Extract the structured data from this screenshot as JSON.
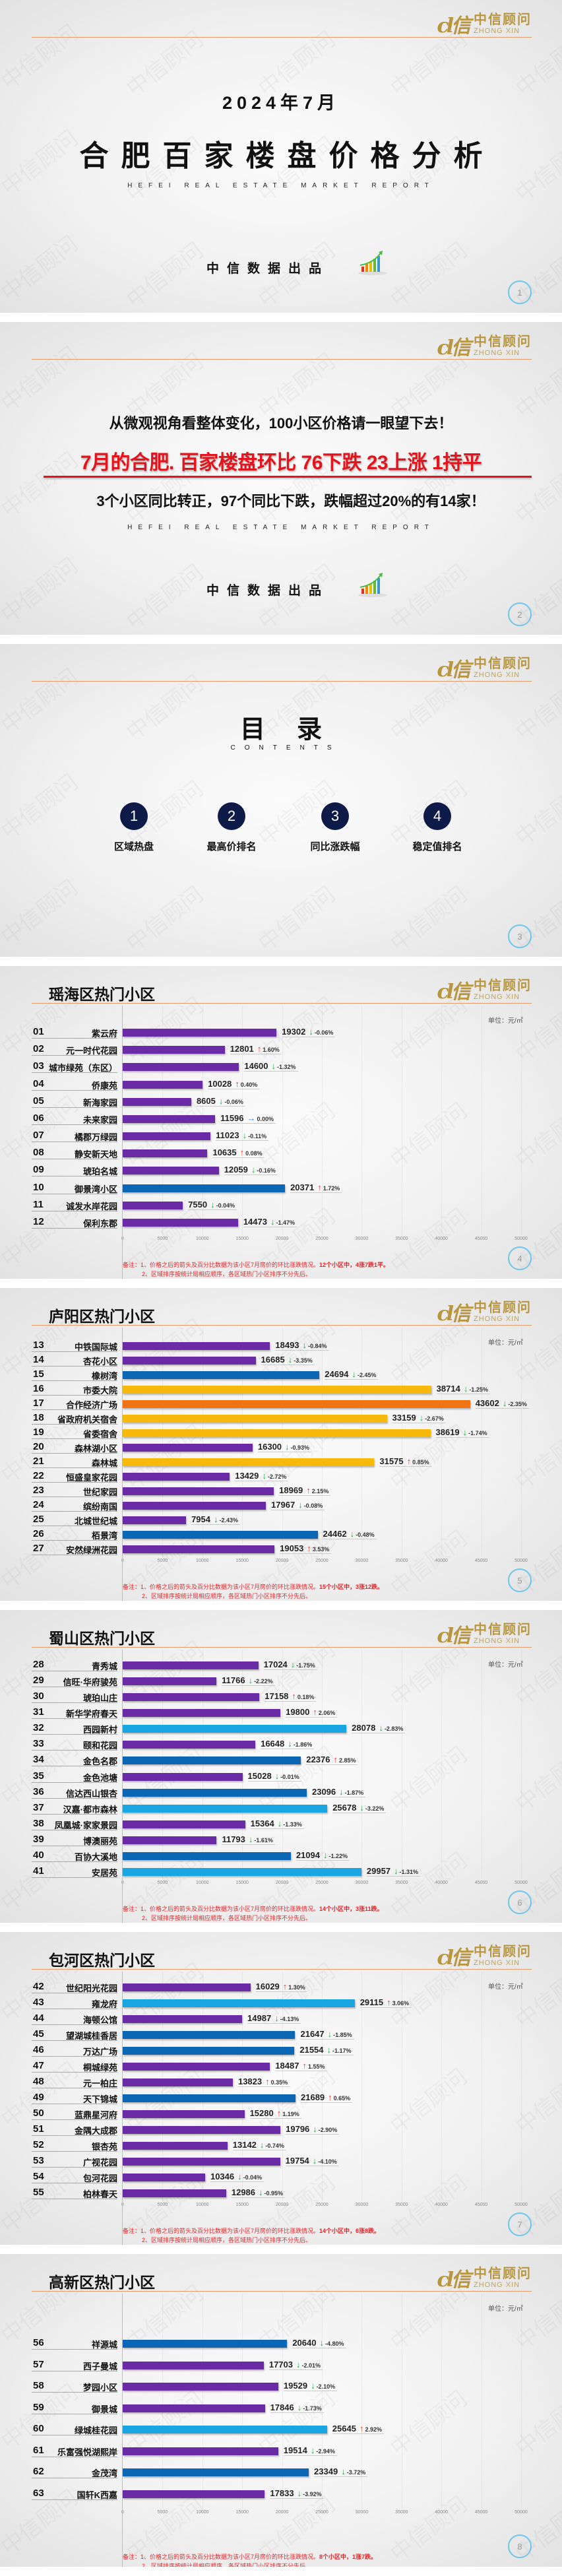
{
  "brand": {
    "name_cn": "中信顾问",
    "name_en": "ZHONG XIN",
    "logo_mark": "cl信"
  },
  "watermark": "中信顾问",
  "cover": {
    "date": "2024年7月",
    "title": "合肥百家楼盘价格分析",
    "subtitle_en": "HEFEI REAL ESTATE MARKET REPORT",
    "producer": "中信数据出品",
    "page": "1"
  },
  "summary": {
    "line1": "从微观视角看整体变化，100小区价格请一眼望下去！",
    "headline": "7月的合肥. 百家楼盘环比 76下跌 23上涨 1持平",
    "line3": "3个小区同比转正，97个同比下跌，跌幅超过20%的有14家！",
    "subtitle_en": "HEFEI REAL ESTATE MARKET REPORT",
    "producer": "中信数据出品",
    "page": "2"
  },
  "toc": {
    "title": "目录",
    "subtitle_en": "CONTENTS",
    "items": [
      {
        "num": "1",
        "label": "区域热盘"
      },
      {
        "num": "2",
        "label": "最高价排名"
      },
      {
        "num": "3",
        "label": "同比涨跌幅"
      },
      {
        "num": "4",
        "label": "稳定值排名"
      }
    ],
    "page": "3"
  },
  "bar_colors": [
    {
      "below": 20000,
      "color": "#6b2aa6"
    },
    {
      "below": 25000,
      "color": "#0b67b5"
    },
    {
      "below": 30000,
      "color": "#19a6e2"
    },
    {
      "below": 40000,
      "color": "#f6b90c"
    },
    {
      "below": 99999,
      "color": "#f27314"
    }
  ],
  "change_colors": {
    "up": "#f03a1c",
    "down": "#1fae3c",
    "flat": "#1e88e5"
  },
  "chart_data": [
    {
      "type": "bar",
      "title": "瑶海区热门小区",
      "unit": "单位：元/㎡",
      "xlim": [
        0,
        50000
      ],
      "xticks": [
        "0",
        "5000",
        "10000",
        "15000",
        "20000",
        "25000",
        "30000",
        "35000",
        "40000",
        "45000",
        "50000"
      ],
      "rows": [
        {
          "rank": "01",
          "name": "紫云府",
          "value": 19302,
          "change": "-0.06%"
        },
        {
          "rank": "02",
          "name": "元一时代花园",
          "value": 12801,
          "change": "1.60%"
        },
        {
          "rank": "03",
          "name": "城市绿苑（东区）",
          "value": 14600,
          "change": "-1.32%"
        },
        {
          "rank": "04",
          "name": "侨康苑",
          "value": 10028,
          "change": "0.40%"
        },
        {
          "rank": "05",
          "name": "新海家园",
          "value": 8605,
          "change": "-0.06%"
        },
        {
          "rank": "06",
          "name": "未来家园",
          "value": 11596,
          "change": "0.00%"
        },
        {
          "rank": "07",
          "name": "橘郡万绿园",
          "value": 11023,
          "change": "-0.11%"
        },
        {
          "rank": "08",
          "name": "静安新天地",
          "value": 10635,
          "change": "0.08%"
        },
        {
          "rank": "09",
          "name": "琥珀名城",
          "value": 12059,
          "change": "-0.16%"
        },
        {
          "rank": "10",
          "name": "御景湾小区",
          "value": 20371,
          "change": "1.72%"
        },
        {
          "rank": "11",
          "name": "诚发水岸花园",
          "value": 7550,
          "change": "-0.04%"
        },
        {
          "rank": "12",
          "name": "保利东郡",
          "value": 14473,
          "change": "-1.47%"
        }
      ],
      "note": {
        "line1": "备注：1、价格之后的箭头及百分比数据为该小区7月房价的环比涨跌情况。",
        "summary": "12个小区中，4涨7跌1平。",
        "line2": "2、区域排序按统计局相应顺序，各区域热门小区排序不分先后。"
      },
      "page": "4"
    },
    {
      "type": "bar",
      "title": "庐阳区热门小区",
      "unit": "单位：元/㎡",
      "xlim": [
        0,
        50000
      ],
      "xticks": [
        "0",
        "5000",
        "10000",
        "15000",
        "20000",
        "25000",
        "30000",
        "35000",
        "40000",
        "45000",
        "50000"
      ],
      "rows": [
        {
          "rank": "13",
          "name": "中铁国际城",
          "value": 18493,
          "change": "-0.84%"
        },
        {
          "rank": "14",
          "name": "杏花小区",
          "value": 16685,
          "change": "-3.35%"
        },
        {
          "rank": "15",
          "name": "橡树湾",
          "value": 24694,
          "change": "-2.45%"
        },
        {
          "rank": "16",
          "name": "市委大院",
          "value": 38714,
          "change": "-1.25%"
        },
        {
          "rank": "17",
          "name": "合作经济广场",
          "value": 43602,
          "change": "-2.35%"
        },
        {
          "rank": "18",
          "name": "省政府机关宿舍",
          "value": 33159,
          "change": "-2.67%"
        },
        {
          "rank": "19",
          "name": "省委宿舍",
          "value": 38619,
          "change": "-1.74%"
        },
        {
          "rank": "20",
          "name": "森林湖小区",
          "value": 16300,
          "change": "-0.93%"
        },
        {
          "rank": "21",
          "name": "森林城",
          "value": 31575,
          "change": "0.85%"
        },
        {
          "rank": "22",
          "name": "恒盛皇家花园",
          "value": 13429,
          "change": "-2.72%"
        },
        {
          "rank": "23",
          "name": "世纪家园",
          "value": 18969,
          "change": "2.15%"
        },
        {
          "rank": "24",
          "name": "缤纷南国",
          "value": 17967,
          "change": "-0.08%"
        },
        {
          "rank": "25",
          "name": "北城世纪城",
          "value": 7954,
          "change": "-2.43%"
        },
        {
          "rank": "26",
          "name": "栢景湾",
          "value": 24462,
          "change": "-0.48%"
        },
        {
          "rank": "27",
          "name": "安然绿洲花园",
          "value": 19053,
          "change": "3.53%"
        }
      ],
      "note": {
        "line1": "备注：1、价格之后的箭头及百分比数据为该小区7月房价的环比涨跌情况。",
        "summary": "15个小区中，3涨12跌。",
        "line2": "2、区域排序按统计局相应顺序，各区域热门小区排序不分先后。"
      },
      "page": "5"
    },
    {
      "type": "bar",
      "title": "蜀山区热门小区",
      "unit": "单位：元/㎡",
      "xlim": [
        0,
        50000
      ],
      "xticks": [
        "0",
        "5000",
        "10000",
        "15000",
        "20000",
        "25000",
        "30000",
        "35000",
        "40000",
        "45000",
        "50000"
      ],
      "rows": [
        {
          "rank": "28",
          "name": "青秀城",
          "value": 17024,
          "change": "-1.75%"
        },
        {
          "rank": "29",
          "name": "信旺·华府骏苑",
          "value": 11766,
          "change": "-2.22%"
        },
        {
          "rank": "30",
          "name": "琥珀山庄",
          "value": 17158,
          "change": "0.18%"
        },
        {
          "rank": "31",
          "name": "新华学府春天",
          "value": 19800,
          "change": "2.06%"
        },
        {
          "rank": "32",
          "name": "西园新村",
          "value": 28078,
          "change": "-2.83%"
        },
        {
          "rank": "33",
          "name": "颐和花园",
          "value": 16648,
          "change": "-1.86%"
        },
        {
          "rank": "34",
          "name": "金色名郡",
          "value": 22376,
          "change": "2.85%"
        },
        {
          "rank": "35",
          "name": "金色池塘",
          "value": 15028,
          "change": "-0.01%"
        },
        {
          "rank": "36",
          "name": "信达西山银杏",
          "value": 23096,
          "change": "-1.87%"
        },
        {
          "rank": "37",
          "name": "汉嘉·都市森林",
          "value": 25678,
          "change": "-3.22%"
        },
        {
          "rank": "38",
          "name": "凤凰城·家家景园",
          "value": 15364,
          "change": "-1.33%"
        },
        {
          "rank": "39",
          "name": "博澳丽苑",
          "value": 11793,
          "change": "-1.61%"
        },
        {
          "rank": "40",
          "name": "百协大溪地",
          "value": 21094,
          "change": "-1.22%"
        },
        {
          "rank": "41",
          "name": "安居苑",
          "value": 29957,
          "change": "-1.31%"
        }
      ],
      "note": {
        "line1": "备注：1、价格之后的箭头及百分比数据为该小区7月房价的环比涨跌情况。",
        "summary": "14个小区中，3涨11跌。",
        "line2": "2、区域排序按统计局相应顺序，各区域热门小区排序不分先后。"
      },
      "page": "6"
    },
    {
      "type": "bar",
      "title": "包河区热门小区",
      "unit": "单位：元/㎡",
      "xlim": [
        0,
        50000
      ],
      "xticks": [
        "0",
        "5000",
        "10000",
        "15000",
        "20000",
        "25000",
        "30000",
        "35000",
        "40000",
        "45000",
        "50000"
      ],
      "rows": [
        {
          "rank": "42",
          "name": "世纪阳光花园",
          "value": 16029,
          "change": "1.30%"
        },
        {
          "rank": "43",
          "name": "雍龙府",
          "value": 29115,
          "change": "3.06%"
        },
        {
          "rank": "44",
          "name": "海顿公馆",
          "value": 14987,
          "change": "-4.13%"
        },
        {
          "rank": "45",
          "name": "望湖城桂香居",
          "value": 21647,
          "change": "-1.85%"
        },
        {
          "rank": "46",
          "name": "万达广场",
          "value": 21554,
          "change": "-1.17%"
        },
        {
          "rank": "47",
          "name": "桐城绿苑",
          "value": 18487,
          "change": "1.55%"
        },
        {
          "rank": "48",
          "name": "元一柏庄",
          "value": 13823,
          "change": "0.35%"
        },
        {
          "rank": "49",
          "name": "天下锦城",
          "value": 21689,
          "change": "0.65%"
        },
        {
          "rank": "50",
          "name": "蓝鼎星河府",
          "value": 15280,
          "change": "1.19%"
        },
        {
          "rank": "51",
          "name": "金隅大成郡",
          "value": 19796,
          "change": "-2.90%"
        },
        {
          "rank": "52",
          "name": "银杏苑",
          "value": 13142,
          "change": "-0.74%"
        },
        {
          "rank": "53",
          "name": "广视花园",
          "value": 19754,
          "change": "-4.10%"
        },
        {
          "rank": "54",
          "name": "包河花园",
          "value": 10346,
          "change": "-0.04%"
        },
        {
          "rank": "55",
          "name": "柏林春天",
          "value": 12986,
          "change": "-0.95%"
        }
      ],
      "note": {
        "line1": "备注：1、价格之后的箭头及百分比数据为该小区7月房价的环比涨跌情况。",
        "summary": "14个小区中，6涨8跌。",
        "line2": "2、区域排序按统计局相应顺序，各区域热门小区排序不分先后。"
      },
      "page": "7"
    },
    {
      "type": "bar",
      "title": "高新区热门小区",
      "unit": "单位：元/㎡",
      "xlim": [
        0,
        50000
      ],
      "xticks": [
        "0",
        "5000",
        "10000",
        "15000",
        "20000",
        "25000",
        "30000",
        "35000",
        "40000",
        "45000",
        "50000"
      ],
      "rows": [
        {
          "rank": "56",
          "name": "祥源城",
          "value": 20640,
          "change": "-4.80%"
        },
        {
          "rank": "57",
          "name": "西子曼城",
          "value": 17703,
          "change": "-2.01%"
        },
        {
          "rank": "58",
          "name": "梦园小区",
          "value": 19529,
          "change": "-2.10%"
        },
        {
          "rank": "59",
          "name": "御景城",
          "value": 17846,
          "change": "-1.73%"
        },
        {
          "rank": "60",
          "name": "绿城桂花园",
          "value": 25645,
          "change": "2.92%"
        },
        {
          "rank": "61",
          "name": "乐富强悦湖熙岸",
          "value": 19514,
          "change": "-2.94%"
        },
        {
          "rank": "62",
          "name": "金茂湾",
          "value": 23349,
          "change": "-3.72%"
        },
        {
          "rank": "63",
          "name": "国轩K西嘉",
          "value": 17833,
          "change": "-3.92%"
        }
      ],
      "note": {
        "line1": "备注：1、价格之后的箭头及百分比数据为该小区7月房价的环比涨跌情况。",
        "summary": "8个小区中，1涨7跌。",
        "line2": "2、区域排序按统计局相应顺序，各区域热门小区排序不分先后。"
      },
      "page": "8"
    }
  ]
}
